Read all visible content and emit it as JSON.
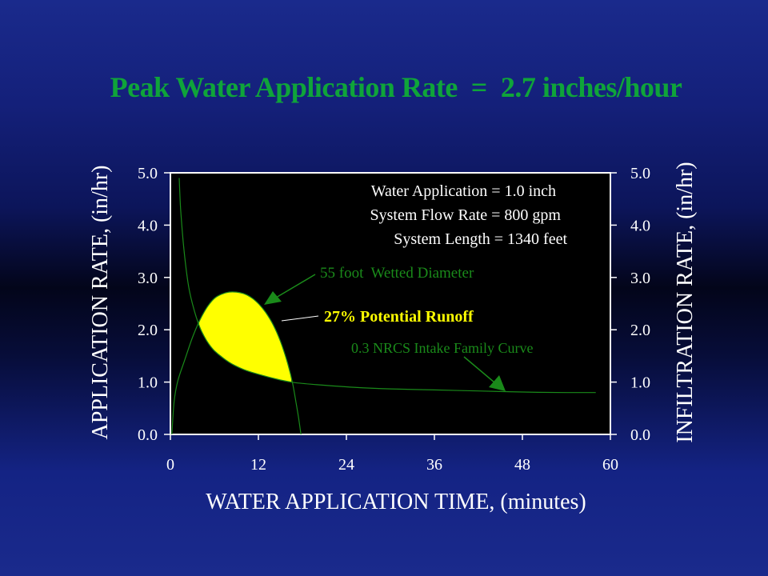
{
  "slide": {
    "title": "Peak Water Application Rate  =  2.7 inches/hour"
  },
  "colors": {
    "title": "#0fa43a",
    "curve": "#1a8a1a",
    "runoff_fill": "#ffff00",
    "annotation_green": "#1a8a1a",
    "axis_text": "#ffffff"
  },
  "chart_data": {
    "type": "line",
    "title": "Peak Water Application Rate  =  2.7 inches/hour",
    "xlabel": "WATER APPLICATION TIME, (minutes)",
    "ylabel": "APPLICATION RATE, (in/hr)",
    "y2label": "INFILTRATION RATE, (in/hr)",
    "xlim": [
      0,
      60
    ],
    "ylim": [
      0,
      5
    ],
    "x_ticks": [
      "0",
      "12",
      "24",
      "36",
      "48",
      "60"
    ],
    "y_ticks": [
      "0.0",
      "1.0",
      "2.0",
      "3.0",
      "4.0",
      "5.0"
    ],
    "grid": false,
    "series": [
      {
        "name": "0.3 NRCS Intake Family Curve",
        "x": [
          1.2,
          1.4,
          1.8,
          2.4,
          3.0,
          4.0,
          5.0,
          6.0,
          8.0,
          10.0,
          12.0,
          15.0,
          17.0,
          20.0,
          25.0,
          30.0,
          36.0,
          42.0,
          48.0,
          54.0,
          58.0
        ],
        "y": [
          4.9,
          4.3,
          3.6,
          2.9,
          2.5,
          2.05,
          1.78,
          1.6,
          1.38,
          1.24,
          1.15,
          1.04,
          0.99,
          0.95,
          0.9,
          0.87,
          0.85,
          0.83,
          0.81,
          0.8,
          0.8
        ]
      },
      {
        "name": "55 foot  Wetted Diameter",
        "x": [
          0.2,
          0.5,
          1.0,
          2.0,
          3.0,
          4.0,
          5.0,
          6.0,
          7.0,
          8.0,
          9.0,
          10.0,
          11.0,
          12.0,
          13.0,
          14.0,
          15.0,
          16.0,
          16.7,
          17.2,
          17.5,
          17.8
        ],
        "y": [
          0.0,
          0.62,
          1.02,
          1.44,
          1.85,
          2.18,
          2.43,
          2.6,
          2.68,
          2.72,
          2.72,
          2.69,
          2.62,
          2.5,
          2.33,
          2.1,
          1.78,
          1.35,
          0.95,
          0.55,
          0.3,
          0.0
        ]
      }
    ],
    "annotations": {
      "info_lines": [
        "Water Application = 1.0 inch",
        "System Flow Rate = 800 gpm",
        "System Length = 1340 feet"
      ],
      "wetted_label": "55 foot  Wetted Diameter",
      "runoff_label": "27% Potential Runoff",
      "intake_label": "0.3 NRCS Intake Family Curve"
    }
  }
}
